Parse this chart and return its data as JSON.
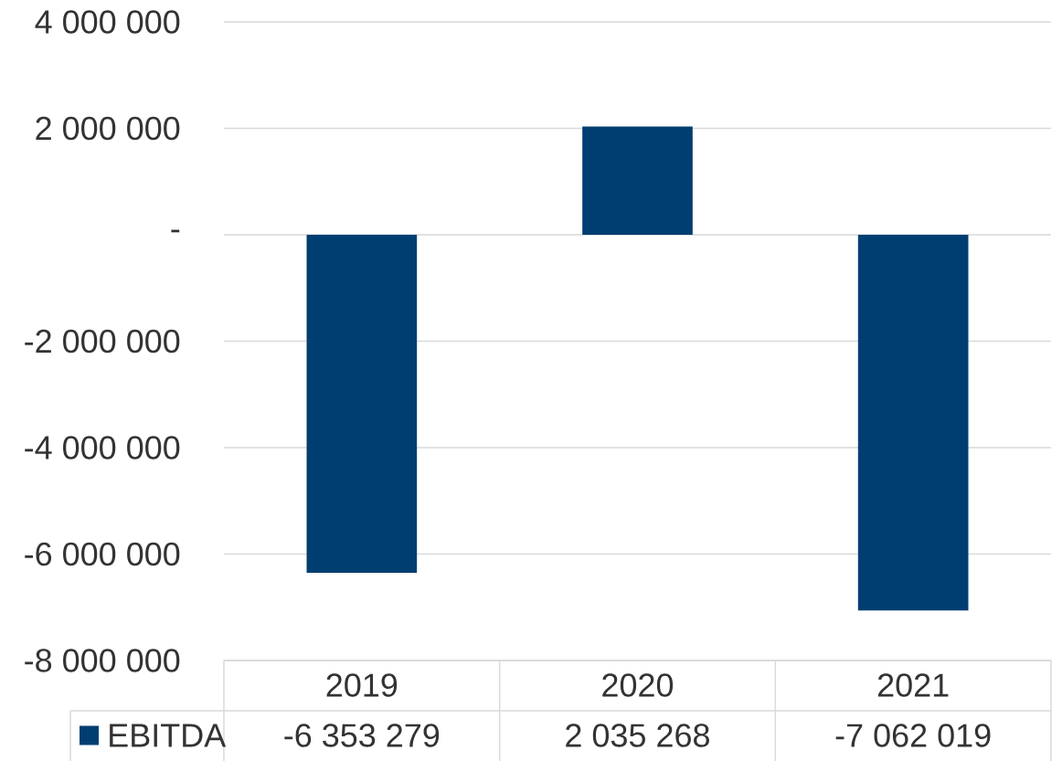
{
  "chart_data": {
    "type": "bar",
    "categories": [
      "2019",
      "2020",
      "2021"
    ],
    "series": [
      {
        "name": "EBITDA",
        "color": "#003e71",
        "values": [
          -6353279,
          2035268,
          -7062019
        ],
        "value_labels": [
          "-6 353 279",
          "2 035 268",
          "-7 062 019"
        ]
      }
    ],
    "ylim": [
      -8000000,
      4000000
    ],
    "yticks": [
      {
        "value": -8000000,
        "label": "-8 000 000"
      },
      {
        "value": -6000000,
        "label": "-6 000 000"
      },
      {
        "value": -4000000,
        "label": "-4 000 000"
      },
      {
        "value": -2000000,
        "label": "-2 000 000"
      },
      {
        "value": 0,
        "label": "-"
      },
      {
        "value": 2000000,
        "label": "2 000 000"
      },
      {
        "value": 4000000,
        "label": "4 000 000"
      }
    ],
    "grid": "y",
    "legend": "bottom"
  }
}
